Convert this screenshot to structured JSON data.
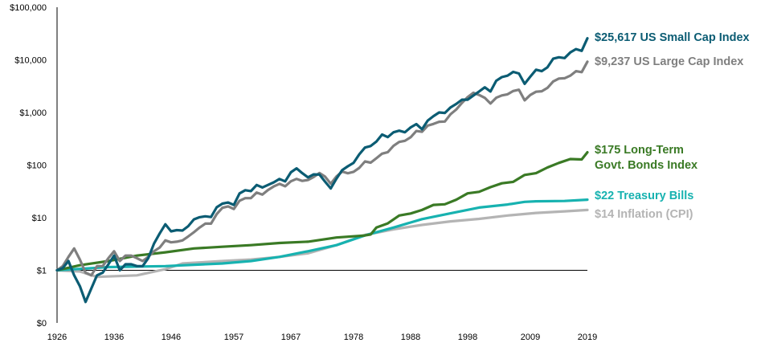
{
  "chart_data": {
    "type": "line",
    "title": "",
    "xlabel": "",
    "ylabel": "",
    "y_scale": "log",
    "grid": false,
    "legend": "labels at right end of each line",
    "xlim": [
      1926,
      2019
    ],
    "ylim": [
      0.1,
      100000
    ],
    "x_ticks": [
      {
        "value": 1926,
        "label": "1926"
      },
      {
        "value": 1936,
        "label": "1936"
      },
      {
        "value": 1946,
        "label": "1946"
      },
      {
        "value": 1957,
        "label": "1957"
      },
      {
        "value": 1967,
        "label": "1967"
      },
      {
        "value": 1978,
        "label": "1978"
      },
      {
        "value": 1988,
        "label": "1988"
      },
      {
        "value": 1998,
        "label": "1998"
      },
      {
        "value": 2009,
        "label": "2009"
      },
      {
        "value": 2019,
        "label": "2019"
      }
    ],
    "y_ticks": [
      {
        "value": 0.1,
        "label": "$0"
      },
      {
        "value": 1,
        "label": "$1"
      },
      {
        "value": 10,
        "label": "$10"
      },
      {
        "value": 100,
        "label": "$100"
      },
      {
        "value": 1000,
        "label": "$1,000"
      },
      {
        "value": 10000,
        "label": "$10,000"
      },
      {
        "value": 100000,
        "label": "$100,000"
      }
    ],
    "reference_line": {
      "y": 1
    },
    "series": [
      {
        "key": "small_cap",
        "label_lines": [
          "$25,617 US Small Cap Index"
        ],
        "color": "#0b5c73",
        "x": [
          1926,
          1927,
          1928,
          1929,
          1930,
          1931,
          1932,
          1933,
          1934,
          1935,
          1936,
          1937,
          1938,
          1939,
          1940,
          1941,
          1942,
          1943,
          1944,
          1945,
          1946,
          1947,
          1948,
          1949,
          1950,
          1951,
          1952,
          1953,
          1954,
          1955,
          1956,
          1957,
          1958,
          1959,
          1960,
          1961,
          1962,
          1963,
          1964,
          1965,
          1966,
          1967,
          1968,
          1969,
          1970,
          1971,
          1972,
          1973,
          1974,
          1975,
          1976,
          1977,
          1978,
          1979,
          1980,
          1981,
          1982,
          1983,
          1984,
          1985,
          1986,
          1987,
          1988,
          1989,
          1990,
          1991,
          1992,
          1993,
          1994,
          1995,
          1996,
          1997,
          1998,
          1999,
          2000,
          2001,
          2002,
          2003,
          2004,
          2005,
          2006,
          2007,
          2008,
          2009,
          2010,
          2011,
          2012,
          2013,
          2014,
          2015,
          2016,
          2017,
          2018,
          2019
        ],
        "y": [
          1,
          1.1,
          1.5,
          0.8,
          0.5,
          0.25,
          0.45,
          0.8,
          0.9,
          1.3,
          1.9,
          1.0,
          1.3,
          1.3,
          1.2,
          1.2,
          1.7,
          3.2,
          5.0,
          7.5,
          5.5,
          5.8,
          5.7,
          6.9,
          9.3,
          10.2,
          10.6,
          10.3,
          15.8,
          18.5,
          19.4,
          17.5,
          28.9,
          33.3,
          32.0,
          41.8,
          37.5,
          42.0,
          46.9,
          54.5,
          49.0,
          73.0,
          86.5,
          70.0,
          58.5,
          66.5,
          66.0,
          48.5,
          36.0,
          55.0,
          80.0,
          95.0,
          110.0,
          160.0,
          215.0,
          230.0,
          280.0,
          380.0,
          340.0,
          420.0,
          450.0,
          420.0,
          520.0,
          600.0,
          480.0,
          700.0,
          850.0,
          1000.0,
          980.0,
          1250.0,
          1450.0,
          1750.0,
          1750.0,
          2100.0,
          2500.0,
          3000.0,
          2500.0,
          4000.0,
          4700.0,
          5000.0,
          5900.0,
          5500.0,
          3500.0,
          4800.0,
          6500.0,
          6100.0,
          7200.0,
          10500.0,
          11200.0,
          10800.0,
          13800.0,
          16000.0,
          14800.0,
          25617
        ]
      },
      {
        "key": "large_cap",
        "label_lines": [
          "$9,237 US Large Cap Index"
        ],
        "color": "#7f7f7f",
        "x": [
          1926,
          1927,
          1928,
          1929,
          1930,
          1931,
          1932,
          1933,
          1934,
          1935,
          1936,
          1937,
          1938,
          1939,
          1940,
          1941,
          1942,
          1943,
          1944,
          1945,
          1946,
          1947,
          1948,
          1949,
          1950,
          1951,
          1952,
          1953,
          1954,
          1955,
          1956,
          1957,
          1958,
          1959,
          1960,
          1961,
          1962,
          1963,
          1964,
          1965,
          1966,
          1967,
          1968,
          1969,
          1970,
          1971,
          1972,
          1973,
          1974,
          1975,
          1976,
          1977,
          1978,
          1979,
          1980,
          1981,
          1982,
          1983,
          1984,
          1985,
          1986,
          1987,
          1988,
          1989,
          1990,
          1991,
          1992,
          1993,
          1994,
          1995,
          1996,
          1997,
          1998,
          1999,
          2000,
          2001,
          2002,
          2003,
          2004,
          2005,
          2006,
          2007,
          2008,
          2009,
          2010,
          2011,
          2012,
          2013,
          2014,
          2015,
          2016,
          2017,
          2018,
          2019
        ],
        "y": [
          1,
          1.2,
          1.8,
          2.6,
          1.6,
          0.9,
          0.8,
          1.2,
          1.2,
          1.7,
          2.3,
          1.5,
          1.9,
          1.9,
          1.7,
          1.5,
          1.8,
          2.3,
          2.7,
          3.7,
          3.4,
          3.5,
          3.7,
          4.4,
          5.3,
          6.5,
          7.7,
          7.7,
          11.7,
          15.4,
          16.4,
          14.6,
          21.0,
          23.5,
          23.6,
          30.0,
          27.4,
          33.6,
          39.2,
          44.0,
          39.6,
          49.2,
          54.6,
          50.0,
          52.0,
          59.4,
          70.6,
          60.3,
          44.3,
          60.8,
          75.3,
          69.9,
          74.5,
          88.3,
          117.0,
          111.2,
          135.0,
          165.0,
          176.0,
          232.0,
          275.0,
          289.0,
          337.0,
          444.0,
          430.0,
          561.0,
          604.0,
          664.0,
          673.0,
          926.0,
          1139.0,
          1519.0,
          1954.0,
          2366.0,
          2150.0,
          1895.0,
          1476.0,
          1900.0,
          2107.0,
          2210.0,
          2559.0,
          2700.0,
          1700.0,
          2150.0,
          2474.0,
          2526.0,
          2930.0,
          3879.0,
          4410.0,
          4471.0,
          5006.0,
          6100.0,
          5833.0,
          9237
        ]
      },
      {
        "key": "bonds",
        "label_lines": [
          "$175 Long-Term",
          "Govt. Bonds Index"
        ],
        "color": "#3a7a25",
        "x": [
          1926,
          1930,
          1935,
          1940,
          1945,
          1950,
          1955,
          1960,
          1965,
          1970,
          1975,
          1979,
          1980,
          1981,
          1982,
          1984,
          1986,
          1988,
          1990,
          1992,
          1994,
          1996,
          1998,
          2000,
          2002,
          2004,
          2006,
          2008,
          2010,
          2012,
          2014,
          2016,
          2018,
          2019
        ],
        "y": [
          1,
          1.25,
          1.5,
          1.9,
          2.2,
          2.6,
          2.8,
          3.0,
          3.3,
          3.5,
          4.2,
          4.5,
          4.6,
          4.8,
          6.5,
          7.8,
          11.0,
          12.0,
          14.0,
          17.5,
          18.0,
          22.0,
          29.0,
          31.0,
          38.0,
          45.0,
          48.0,
          65.0,
          70.0,
          90.0,
          110.0,
          130.0,
          128.0,
          175.0
        ]
      },
      {
        "key": "tbills",
        "label_lines": [
          "$22 Treasury Bills"
        ],
        "color": "#17b2b0",
        "x": [
          1926,
          1935,
          1945,
          1955,
          1960,
          1965,
          1970,
          1975,
          1980,
          1985,
          1990,
          1995,
          2000,
          2005,
          2008,
          2010,
          2015,
          2019
        ],
        "y": [
          1,
          1.15,
          1.2,
          1.35,
          1.5,
          1.8,
          2.3,
          3.0,
          4.6,
          6.5,
          9.4,
          12.1,
          15.6,
          17.8,
          20.0,
          20.5,
          20.8,
          22.0
        ]
      },
      {
        "key": "cpi",
        "label_lines": [
          "$14 Inflation (CPI)"
        ],
        "color": "#b4b4b4",
        "x": [
          1926,
          1930,
          1933,
          1940,
          1945,
          1948,
          1955,
          1960,
          1965,
          1970,
          1975,
          1980,
          1985,
          1990,
          1995,
          2000,
          2005,
          2010,
          2015,
          2019
        ],
        "y": [
          1,
          0.95,
          0.75,
          0.8,
          1.05,
          1.35,
          1.5,
          1.6,
          1.8,
          2.1,
          3.0,
          4.7,
          6.0,
          7.3,
          8.5,
          9.5,
          11.0,
          12.3,
          13.2,
          14.0
        ]
      }
    ]
  }
}
